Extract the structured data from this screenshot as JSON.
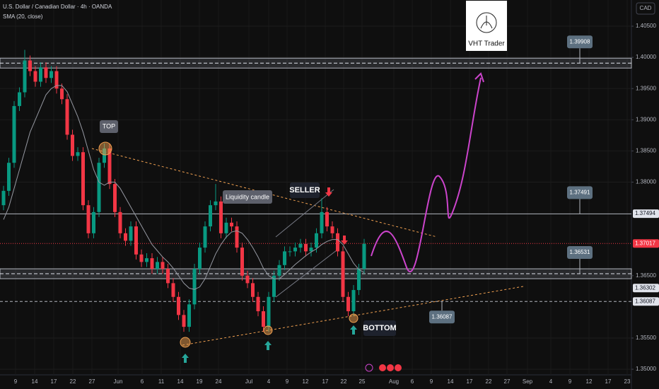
{
  "chart_data": {
    "type": "candlestick",
    "title": "U.S. Dollar / Canadian Dollar · 4h · OANDA",
    "currency": "CAD",
    "brand": "VHT Trader",
    "up_color": "#089981",
    "down_color": "#f23645",
    "ylim": [
      1.3491,
      1.4092
    ],
    "yticks": [
      {
        "value": 1.405,
        "label": "1.40500"
      },
      {
        "value": 1.4,
        "label": "1.40000"
      },
      {
        "value": 1.395,
        "label": "1.39500"
      },
      {
        "value": 1.39,
        "label": "1.39000"
      },
      {
        "value": 1.385,
        "label": "1.38500"
      },
      {
        "value": 1.38,
        "label": "1.38000"
      },
      {
        "value": 1.365,
        "label": "1.36500"
      },
      {
        "value": 1.355,
        "label": "1.35500"
      },
      {
        "value": 1.35,
        "label": "1.35000"
      }
    ],
    "grid": true,
    "x_labels": [
      "9",
      "14",
      "17",
      "22",
      "27",
      "Jun",
      "6",
      "11",
      "14",
      "19",
      "24",
      "Jul",
      "4",
      "9",
      "12",
      "17",
      "22",
      "25",
      "Aug",
      "6",
      "9",
      "14",
      "17",
      "22",
      "27",
      "Sep",
      "4",
      "9",
      "12",
      "17",
      "23"
    ],
    "open": [
      1.3763,
      1.3786,
      1.3831,
      1.3922,
      1.3944,
      1.3995,
      1.3978,
      1.3961,
      1.3984,
      1.3967,
      1.3978,
      1.395,
      1.3933,
      1.3876,
      1.3842,
      1.3848,
      1.3763,
      1.3718,
      1.3752,
      1.3831,
      1.3854,
      1.3797,
      1.3752,
      1.3718,
      1.3706,
      1.3729,
      1.3684,
      1.3672,
      1.3678,
      1.3661,
      1.3672,
      1.3661,
      1.3638,
      1.3616,
      1.3587,
      1.3568,
      1.3604,
      1.3661,
      1.3695,
      1.3729,
      1.3763,
      1.3769,
      1.3718,
      1.3735,
      1.3729,
      1.3695,
      1.365,
      1.3638,
      1.3616,
      1.3593,
      1.3568,
      1.3616,
      1.365,
      1.3667,
      1.3689,
      1.3689,
      1.3695,
      1.3701,
      1.3689,
      1.3695,
      1.3718,
      1.3752,
      1.3729,
      1.3718,
      1.3689,
      1.3616,
      1.3593,
      1.3627,
      1.3661
    ],
    "high": [
      1.3794,
      1.3839,
      1.393,
      1.3952,
      1.4012,
      1.4003,
      1.3986,
      1.3992,
      1.3992,
      1.3986,
      1.3986,
      1.3958,
      1.3941,
      1.3884,
      1.3856,
      1.3856,
      1.3771,
      1.376,
      1.3839,
      1.3862,
      1.3862,
      1.3805,
      1.376,
      1.3726,
      1.3737,
      1.3737,
      1.3692,
      1.3686,
      1.3686,
      1.368,
      1.368,
      1.3669,
      1.3646,
      1.3624,
      1.3595,
      1.3612,
      1.3669,
      1.3703,
      1.3737,
      1.3771,
      1.3797,
      1.3777,
      1.3743,
      1.3743,
      1.3737,
      1.3703,
      1.3658,
      1.3646,
      1.3624,
      1.3601,
      1.3624,
      1.3658,
      1.3675,
      1.3697,
      1.3697,
      1.3703,
      1.3709,
      1.3709,
      1.3703,
      1.3726,
      1.3774,
      1.376,
      1.3737,
      1.3726,
      1.3697,
      1.3624,
      1.3635,
      1.3669,
      1.3709
    ],
    "low": [
      1.3755,
      1.3778,
      1.3823,
      1.3914,
      1.3936,
      1.397,
      1.3953,
      1.3953,
      1.3959,
      1.3959,
      1.3942,
      1.3925,
      1.3868,
      1.3834,
      1.3834,
      1.3755,
      1.371,
      1.371,
      1.3744,
      1.3823,
      1.3789,
      1.3744,
      1.371,
      1.3698,
      1.3698,
      1.3676,
      1.3664,
      1.3664,
      1.3653,
      1.3653,
      1.3653,
      1.363,
      1.3608,
      1.3579,
      1.356,
      1.356,
      1.3596,
      1.3653,
      1.3687,
      1.3721,
      1.3755,
      1.371,
      1.371,
      1.3721,
      1.3687,
      1.3642,
      1.363,
      1.3608,
      1.3585,
      1.356,
      1.356,
      1.3608,
      1.3642,
      1.3659,
      1.3681,
      1.3681,
      1.3687,
      1.3681,
      1.3681,
      1.3687,
      1.371,
      1.3721,
      1.371,
      1.3681,
      1.3608,
      1.3585,
      1.3585,
      1.3619,
      1.3653
    ],
    "close": [
      1.3786,
      1.3831,
      1.3922,
      1.3944,
      1.3995,
      1.3978,
      1.3961,
      1.3984,
      1.3967,
      1.3978,
      1.395,
      1.3933,
      1.3876,
      1.3842,
      1.3848,
      1.3763,
      1.3718,
      1.3752,
      1.3831,
      1.3854,
      1.3797,
      1.3752,
      1.3718,
      1.3706,
      1.3729,
      1.3684,
      1.3672,
      1.3678,
      1.3661,
      1.3672,
      1.3661,
      1.3638,
      1.3616,
      1.3587,
      1.3568,
      1.3604,
      1.3661,
      1.3695,
      1.3729,
      1.3763,
      1.3769,
      1.3718,
      1.3735,
      1.3729,
      1.3695,
      1.365,
      1.3638,
      1.3616,
      1.3593,
      1.3568,
      1.3616,
      1.365,
      1.3667,
      1.3689,
      1.3689,
      1.3695,
      1.3701,
      1.3689,
      1.3695,
      1.3718,
      1.3752,
      1.3729,
      1.3718,
      1.3689,
      1.3616,
      1.3593,
      1.3627,
      1.3661,
      1.3701
    ],
    "sma": {
      "name": "SMA (20, close)",
      "color": "#9598a1",
      "values": [
        1.374,
        1.376,
        1.379,
        1.382,
        1.385,
        1.388,
        1.39,
        1.392,
        1.394,
        1.395,
        1.3955,
        1.3955,
        1.3945,
        1.3925,
        1.3905,
        1.388,
        1.385,
        1.382,
        1.38,
        1.3795,
        1.38,
        1.38,
        1.379,
        1.3775,
        1.376,
        1.3745,
        1.373,
        1.3715,
        1.37,
        1.369,
        1.368,
        1.3672,
        1.3662,
        1.365,
        1.3638,
        1.363,
        1.3628,
        1.3632,
        1.3645,
        1.3665,
        1.3685,
        1.37,
        1.3712,
        1.372,
        1.3722,
        1.3718,
        1.3708,
        1.3695,
        1.368,
        1.3662,
        1.365,
        1.3645,
        1.3645,
        1.3652,
        1.366,
        1.3668,
        1.3675,
        1.3682,
        1.3688,
        1.3693,
        1.37,
        1.3705,
        1.3708,
        1.3708,
        1.37,
        1.3685,
        1.367,
        1.366,
        1.3655
      ]
    },
    "levels": [
      {
        "value": 1.39908,
        "style": "zone"
      },
      {
        "value": 1.37491,
        "style": "solid"
      },
      {
        "value": 1.36531,
        "style": "zone"
      },
      {
        "value": 1.36087,
        "style": "dashed"
      }
    ],
    "price_tags": [
      {
        "value": 1.37494,
        "color": "#e0e3eb"
      },
      {
        "value": 1.37017,
        "color": "#f23645"
      },
      {
        "value": 1.36302,
        "color": "#e0e3eb"
      },
      {
        "value": 1.36087,
        "color": "#e0e3eb"
      }
    ],
    "annotations": [
      "TOP",
      "Liquidity candle",
      "SELLER",
      "BOTTOM"
    ]
  }
}
